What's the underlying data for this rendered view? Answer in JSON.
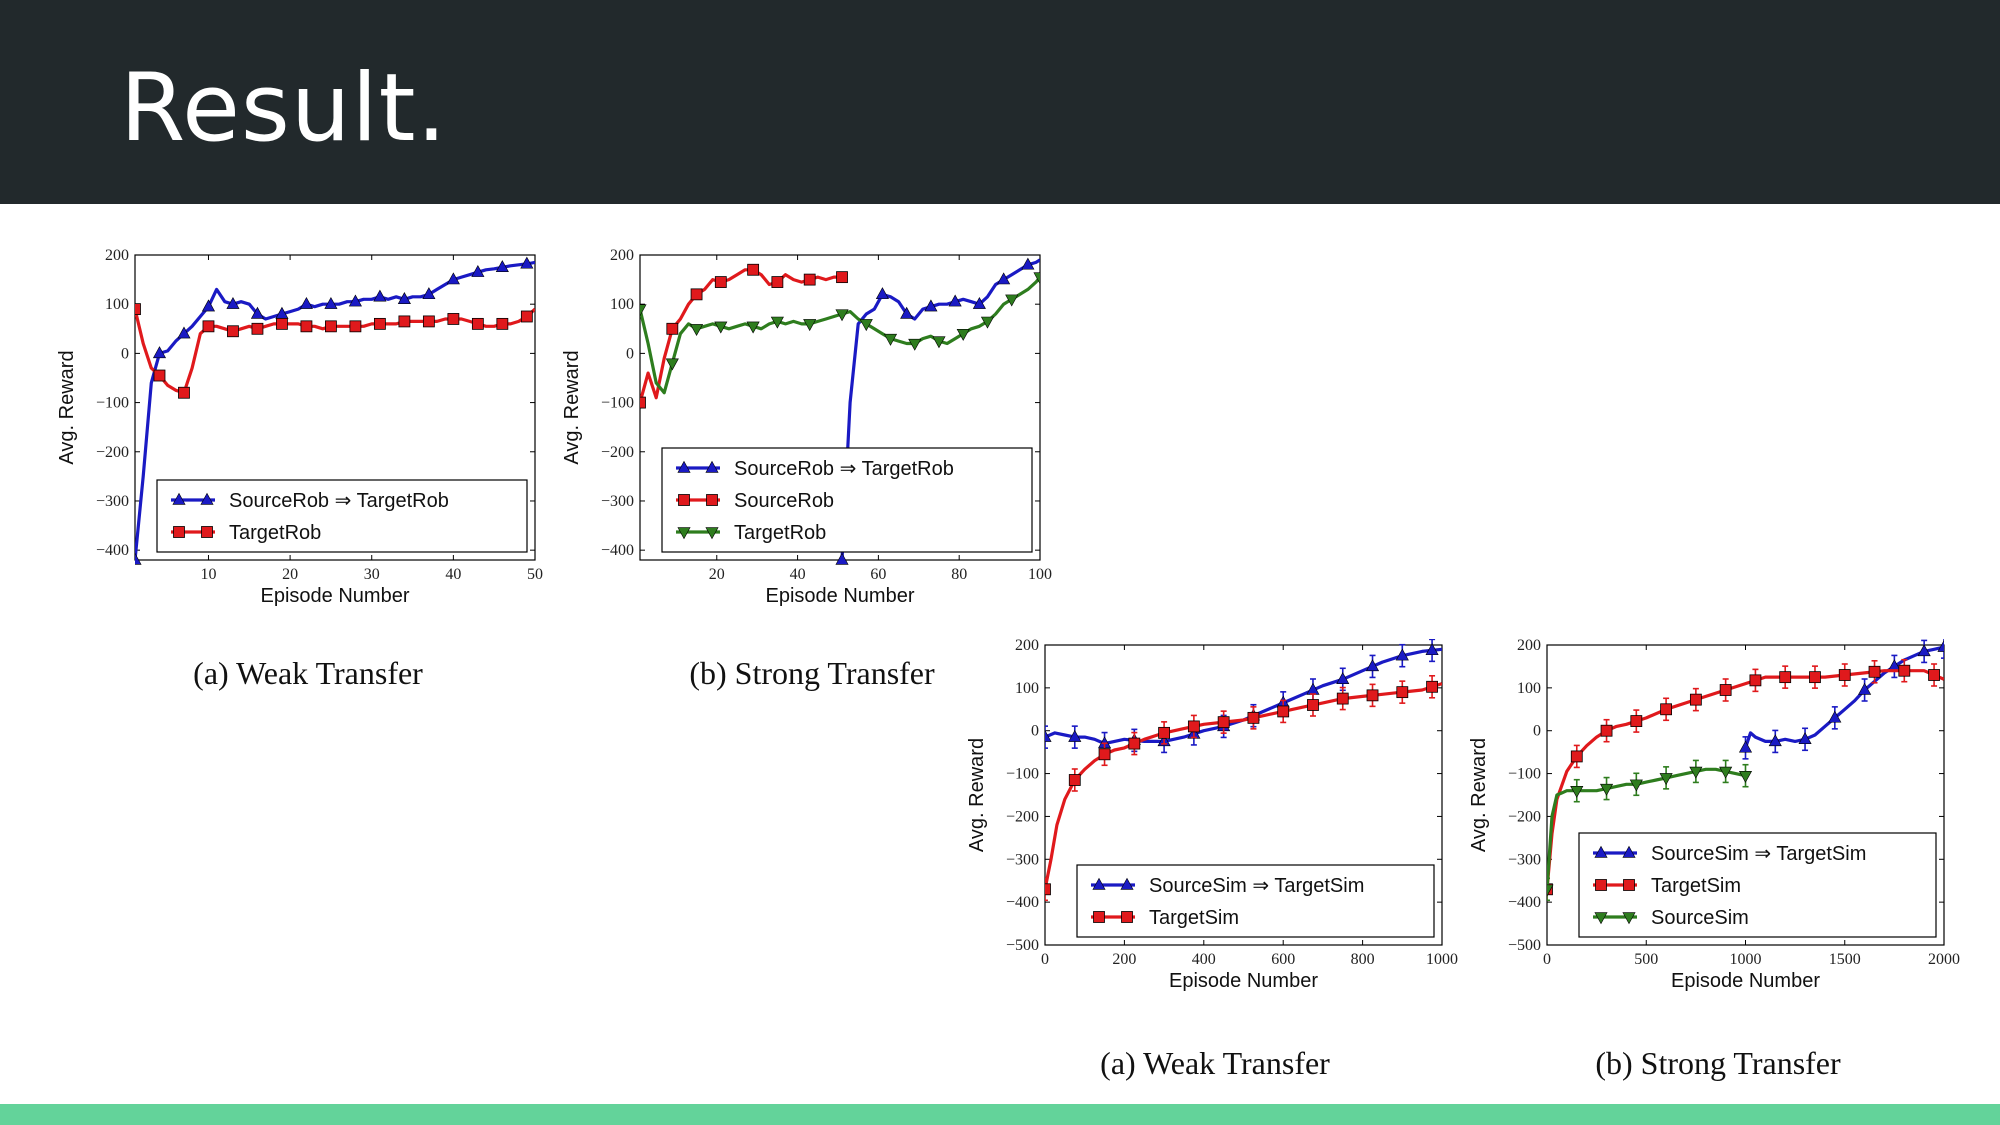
{
  "slide": {
    "title": "Result."
  },
  "colors": {
    "header_bg": "#22292c",
    "footer_bar": "#63d39a",
    "blue": "#1a1ac4",
    "red": "#e0191c",
    "green": "#2e7d1e"
  },
  "captions": [
    "(a) Weak Transfer",
    "(b) Strong Transfer",
    "(a) Weak Transfer",
    "(b) Strong Transfer"
  ],
  "chart_data": [
    {
      "type": "line",
      "xlabel": "Episode Number",
      "ylabel": "Avg. Reward",
      "xlim": [
        1,
        50
      ],
      "ylim": [
        -420,
        200
      ],
      "xticks": [
        10,
        20,
        30,
        40,
        50
      ],
      "yticks": [
        -400,
        -300,
        -200,
        -100,
        0,
        100,
        200
      ],
      "legend": "bottom-right",
      "error_bars": false,
      "series": [
        {
          "name": "SourceRob ⇒ TargetRob",
          "color": "blue",
          "marker": "triangle-up",
          "x": [
            1,
            2,
            3,
            4,
            5,
            6,
            7,
            8,
            9,
            10,
            11,
            12,
            13,
            14,
            15,
            16,
            17,
            18,
            19,
            20,
            21,
            22,
            23,
            24,
            25,
            26,
            27,
            28,
            29,
            30,
            31,
            32,
            33,
            34,
            35,
            36,
            37,
            38,
            39,
            40,
            41,
            42,
            43,
            44,
            45,
            46,
            47,
            48,
            49,
            50
          ],
          "y": [
            -420,
            -250,
            -60,
            0,
            5,
            25,
            40,
            55,
            75,
            95,
            130,
            105,
            100,
            105,
            100,
            80,
            70,
            75,
            80,
            85,
            90,
            100,
            95,
            100,
            100,
            100,
            105,
            105,
            110,
            110,
            115,
            110,
            115,
            110,
            115,
            115,
            120,
            130,
            140,
            150,
            155,
            160,
            165,
            170,
            172,
            175,
            178,
            180,
            182,
            185
          ],
          "marker_x": [
            1,
            4,
            7,
            10,
            13,
            16,
            19,
            22,
            25,
            28,
            31,
            34,
            37,
            40,
            43,
            46,
            49
          ]
        },
        {
          "name": "TargetRob",
          "color": "red",
          "marker": "square",
          "x": [
            1,
            2,
            3,
            4,
            5,
            6,
            7,
            8,
            9,
            10,
            11,
            12,
            13,
            14,
            15,
            16,
            17,
            18,
            19,
            20,
            21,
            22,
            23,
            24,
            25,
            26,
            27,
            28,
            29,
            30,
            31,
            32,
            33,
            34,
            35,
            36,
            37,
            38,
            39,
            40,
            41,
            42,
            43,
            44,
            45,
            46,
            47,
            48,
            49,
            50
          ],
          "y": [
            90,
            20,
            -30,
            -45,
            -65,
            -75,
            -80,
            -30,
            40,
            55,
            55,
            50,
            45,
            50,
            55,
            50,
            55,
            60,
            60,
            60,
            60,
            55,
            55,
            50,
            55,
            55,
            55,
            55,
            55,
            60,
            60,
            60,
            60,
            65,
            65,
            65,
            65,
            65,
            70,
            70,
            70,
            65,
            60,
            55,
            55,
            60,
            60,
            65,
            75,
            90
          ],
          "marker_x": [
            1,
            4,
            7,
            10,
            13,
            16,
            19,
            22,
            25,
            28,
            31,
            34,
            37,
            40,
            43,
            46,
            49
          ]
        }
      ]
    },
    {
      "type": "line",
      "xlabel": "Episode Number",
      "ylabel": "Avg. Reward",
      "xlim": [
        1,
        100
      ],
      "ylim": [
        -420,
        200
      ],
      "xticks": [
        20,
        40,
        60,
        80,
        100
      ],
      "yticks": [
        -400,
        -300,
        -200,
        -100,
        0,
        100,
        200
      ],
      "legend": "bottom-right",
      "error_bars": false,
      "series": [
        {
          "name": "SourceRob ⇒ TargetRob",
          "color": "blue",
          "marker": "triangle-up",
          "x": [
            51,
            53,
            55,
            57,
            59,
            61,
            63,
            65,
            67,
            69,
            71,
            73,
            75,
            77,
            79,
            81,
            83,
            85,
            87,
            89,
            91,
            93,
            95,
            97,
            99,
            100
          ],
          "y": [
            -420,
            -100,
            60,
            80,
            90,
            120,
            115,
            105,
            80,
            70,
            90,
            95,
            100,
            100,
            105,
            110,
            105,
            100,
            115,
            140,
            150,
            160,
            170,
            180,
            185,
            190
          ],
          "marker_x": [
            51,
            61,
            67,
            73,
            79,
            85,
            91,
            97
          ]
        },
        {
          "name": "SourceRob",
          "color": "red",
          "marker": "square",
          "x": [
            1,
            3,
            5,
            7,
            9,
            11,
            13,
            15,
            17,
            19,
            21,
            23,
            25,
            27,
            29,
            31,
            33,
            35,
            37,
            39,
            41,
            43,
            45,
            47,
            49,
            51
          ],
          "y": [
            -100,
            -40,
            -90,
            -10,
            50,
            70,
            100,
            120,
            130,
            150,
            145,
            150,
            160,
            170,
            170,
            160,
            140,
            145,
            160,
            150,
            145,
            150,
            155,
            150,
            155,
            155
          ],
          "marker_x": [
            1,
            9,
            15,
            21,
            29,
            35,
            43,
            51
          ]
        },
        {
          "name": "TargetRob",
          "color": "green",
          "marker": "triangle-down",
          "x": [
            1,
            3,
            5,
            7,
            9,
            11,
            13,
            15,
            17,
            19,
            21,
            23,
            25,
            27,
            29,
            31,
            33,
            35,
            37,
            39,
            41,
            43,
            45,
            47,
            49,
            51,
            53,
            55,
            57,
            59,
            61,
            63,
            65,
            67,
            69,
            71,
            73,
            75,
            77,
            79,
            81,
            83,
            85,
            87,
            89,
            91,
            93,
            95,
            97,
            99,
            100
          ],
          "y": [
            90,
            20,
            -60,
            -80,
            -20,
            40,
            60,
            50,
            55,
            60,
            55,
            50,
            55,
            60,
            55,
            50,
            60,
            65,
            60,
            65,
            60,
            60,
            65,
            70,
            75,
            80,
            85,
            70,
            60,
            50,
            40,
            30,
            25,
            20,
            20,
            30,
            35,
            25,
            20,
            30,
            40,
            50,
            55,
            65,
            80,
            100,
            110,
            120,
            130,
            145,
            155
          ],
          "marker_x": [
            1,
            9,
            15,
            21,
            29,
            35,
            43,
            51,
            57,
            63,
            69,
            75,
            81,
            87,
            93,
            100
          ]
        }
      ]
    },
    {
      "type": "line",
      "xlabel": "Episode Number",
      "ylabel": "Avg. Reward",
      "xlim": [
        0,
        1000
      ],
      "ylim": [
        -500,
        200
      ],
      "xticks": [
        0,
        200,
        400,
        600,
        800,
        1000
      ],
      "yticks": [
        -500,
        -400,
        -300,
        -200,
        -100,
        0,
        100,
        200
      ],
      "legend": "bottom-right",
      "error_bars": true,
      "series": [
        {
          "name": "SourceSim ⇒ TargetSim",
          "color": "blue",
          "marker": "triangle-up",
          "x": [
            0,
            25,
            50,
            75,
            100,
            125,
            150,
            175,
            200,
            250,
            300,
            350,
            400,
            450,
            500,
            550,
            600,
            650,
            700,
            750,
            800,
            850,
            900,
            950,
            1000
          ],
          "y": [
            -15,
            -5,
            -10,
            -15,
            -15,
            -20,
            -30,
            -25,
            -20,
            -25,
            -25,
            -15,
            0,
            10,
            25,
            45,
            65,
            85,
            105,
            120,
            140,
            160,
            175,
            185,
            190
          ],
          "marker_x": [
            0,
            75,
            150,
            225,
            300,
            375,
            450,
            525,
            600,
            675,
            750,
            825,
            900,
            975
          ]
        },
        {
          "name": "TargetSim",
          "color": "red",
          "marker": "square",
          "x": [
            0,
            15,
            30,
            50,
            75,
            100,
            125,
            150,
            175,
            200,
            250,
            300,
            350,
            400,
            450,
            500,
            550,
            600,
            650,
            700,
            750,
            800,
            850,
            900,
            950,
            1000
          ],
          "y": [
            -370,
            -300,
            -220,
            -160,
            -115,
            -90,
            -70,
            -55,
            -45,
            -40,
            -20,
            -5,
            5,
            15,
            20,
            25,
            35,
            45,
            55,
            65,
            75,
            80,
            85,
            90,
            95,
            110
          ],
          "marker_x": [
            0,
            75,
            150,
            225,
            300,
            375,
            450,
            525,
            600,
            675,
            750,
            825,
            900,
            975
          ]
        }
      ]
    },
    {
      "type": "line",
      "xlabel": "Episode Number",
      "ylabel": "Avg. Reward",
      "xlim": [
        0,
        2000
      ],
      "ylim": [
        -500,
        200
      ],
      "xticks": [
        0,
        500,
        1000,
        1500,
        2000
      ],
      "yticks": [
        -500,
        -400,
        -300,
        -200,
        -100,
        0,
        100,
        200
      ],
      "legend": "bottom-right",
      "error_bars": true,
      "series": [
        {
          "name": "SourceSim ⇒ TargetSim",
          "color": "blue",
          "marker": "triangle-up",
          "x": [
            1000,
            1025,
            1050,
            1100,
            1150,
            1200,
            1250,
            1300,
            1350,
            1400,
            1450,
            1500,
            1550,
            1600,
            1650,
            1700,
            1750,
            1800,
            1850,
            1900,
            1950,
            2000
          ],
          "y": [
            -40,
            -5,
            -15,
            -25,
            -25,
            -20,
            -25,
            -20,
            -10,
            10,
            30,
            50,
            70,
            95,
            115,
            135,
            150,
            165,
            175,
            185,
            190,
            195
          ],
          "marker_x": [
            1000,
            1150,
            1300,
            1450,
            1600,
            1750,
            1900,
            2000
          ]
        },
        {
          "name": "TargetSim",
          "color": "red",
          "marker": "square",
          "x": [
            0,
            25,
            50,
            100,
            150,
            200,
            250,
            300,
            350,
            400,
            500,
            600,
            700,
            800,
            900,
            1000,
            1100,
            1200,
            1300,
            1400,
            1500,
            1600,
            1700,
            1800,
            1900,
            2000
          ],
          "y": [
            -370,
            -240,
            -160,
            -95,
            -60,
            -35,
            -15,
            0,
            10,
            15,
            30,
            50,
            65,
            80,
            95,
            110,
            125,
            125,
            125,
            125,
            130,
            135,
            140,
            140,
            140,
            120
          ],
          "marker_x": [
            0,
            150,
            300,
            450,
            600,
            750,
            900,
            1050,
            1200,
            1350,
            1500,
            1650,
            1800,
            1950
          ]
        },
        {
          "name": "SourceSim",
          "color": "green",
          "marker": "triangle-down",
          "x": [
            0,
            25,
            50,
            75,
            100,
            150,
            200,
            250,
            300,
            350,
            400,
            450,
            500,
            550,
            600,
            650,
            700,
            750,
            800,
            850,
            900,
            950,
            1000
          ],
          "y": [
            -370,
            -200,
            -150,
            -145,
            -140,
            -140,
            -140,
            -140,
            -135,
            -130,
            -125,
            -125,
            -120,
            -115,
            -110,
            -105,
            -100,
            -95,
            -90,
            -90,
            -95,
            -100,
            -105
          ],
          "marker_x": [
            0,
            150,
            300,
            450,
            600,
            750,
            900,
            1000
          ]
        }
      ]
    }
  ]
}
